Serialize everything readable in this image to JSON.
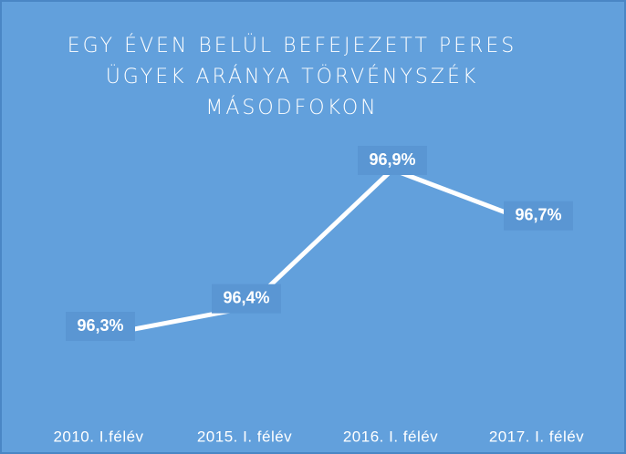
{
  "chart_data": {
    "type": "line",
    "title": "EGY ÉVEN BELÜL BEFEJEZETT PERES ÜGYEK ARÁNYA TÖRVÉNYSZÉK MÁSODFOKON",
    "categories": [
      "2010. I.félév",
      "2015. I. félév",
      "2016. I. félév",
      "2017. I. félév"
    ],
    "series": [
      {
        "color": "#ffffff",
        "values": [
          96.3,
          96.4,
          96.9,
          96.7
        ],
        "value_labels": [
          "96,3%",
          "96,4%",
          "96,9%",
          "96,7%"
        ]
      }
    ]
  }
}
